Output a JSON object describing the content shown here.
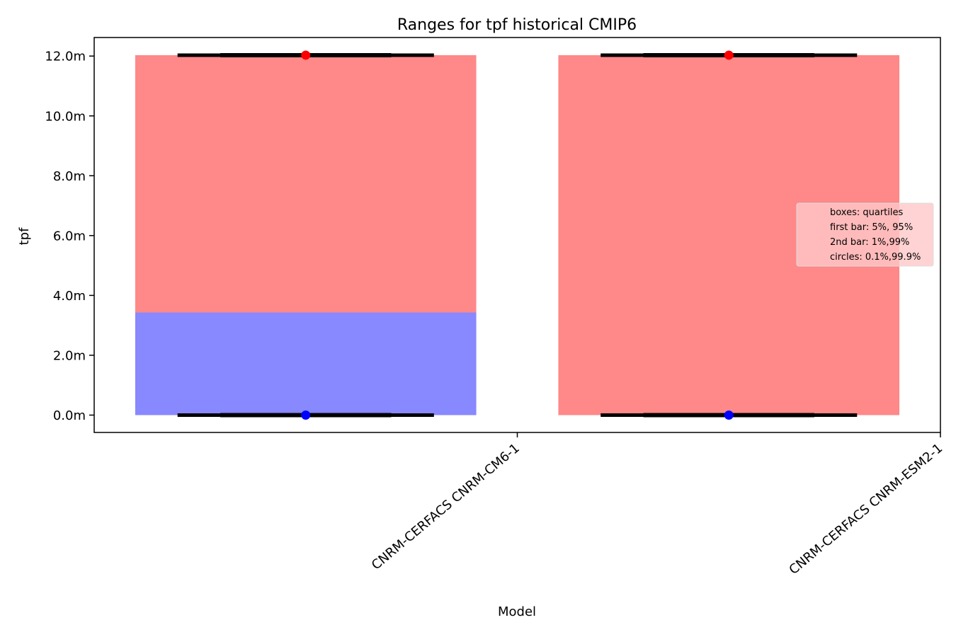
{
  "chart_data": {
    "type": "bar",
    "title": "Ranges for tpf historical CMIP6",
    "xlabel": "Model",
    "ylabel": "tpf",
    "categories": [
      "CNRM-CERFACS CNRM-CM6-1",
      "CNRM-CERFACS CNRM-ESM2-1"
    ],
    "ylim": [
      -0.00058,
      0.01262
    ],
    "yticks": [
      0.0,
      0.002,
      0.004,
      0.006,
      0.008,
      0.01,
      0.012
    ],
    "ytick_labels": [
      "0.0m",
      "2.0m",
      "4.0m",
      "6.0m",
      "8.0m",
      "10.0m",
      "12.0m"
    ],
    "boxes": [
      {
        "model": "CNRM-CERFACS CNRM-CM6-1",
        "q1": 0.0,
        "median": 0.00343,
        "q3": 0.01203
      },
      {
        "model": "CNRM-CERFACS CNRM-ESM2-1",
        "q1": 0.0,
        "median": 0.0,
        "q3": 0.01203
      }
    ],
    "bars_5_95": [
      {
        "model": "CNRM-CERFACS CNRM-CM6-1",
        "low": 0.0,
        "high": 0.01203
      },
      {
        "model": "CNRM-CERFACS CNRM-ESM2-1",
        "low": 0.0,
        "high": 0.01203
      }
    ],
    "bars_1_99": [
      {
        "model": "CNRM-CERFACS CNRM-CM6-1",
        "low": 0.0,
        "high": 0.01203
      },
      {
        "model": "CNRM-CERFACS CNRM-ESM2-1",
        "low": 0.0,
        "high": 0.01203
      }
    ],
    "circles_0_1_99_9": [
      {
        "model": "CNRM-CERFACS CNRM-CM6-1",
        "low": 0.0,
        "high": 0.01203
      },
      {
        "model": "CNRM-CERFACS CNRM-ESM2-1",
        "low": 0.0,
        "high": 0.01203
      }
    ],
    "legend": {
      "position": "center-right",
      "entries": [
        "boxes: quartiles",
        "first bar: 5%, 95%",
        "2nd bar: 1%,99%",
        "circles: 0.1%,99.9%"
      ]
    },
    "colors": {
      "upper_box": "#ff8888",
      "lower_box": "#8888ff",
      "high_circle": "#ff0000",
      "low_circle": "#0000ff",
      "bars": "#000000",
      "legend_bg": "#ffc8c8"
    },
    "grid": false
  }
}
